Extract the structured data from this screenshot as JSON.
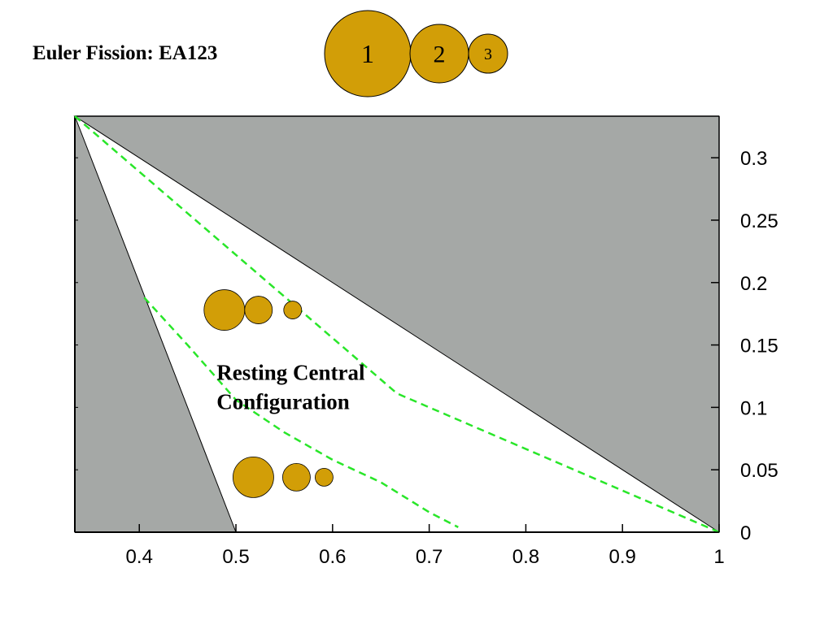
{
  "title": "Euler Fission: EA123",
  "legend_disks": [
    {
      "label": "1"
    },
    {
      "label": "2"
    },
    {
      "label": "3"
    }
  ],
  "colors": {
    "region_fill": "#a5a8a6",
    "disk_fill": "#d29e07",
    "curve": "#29e629",
    "axis": "#000000",
    "background": "#ffffff"
  },
  "chart_data": {
    "type": "line",
    "title": "",
    "xlabel": "",
    "ylabel": "",
    "xlim": [
      0.3333,
      1.0
    ],
    "ylim": [
      0.0,
      0.3333
    ],
    "x_ticks": [
      0.4,
      0.5,
      0.6,
      0.7,
      0.8,
      0.9,
      1
    ],
    "x_tick_labels": [
      "0.4",
      "0.5",
      "0.6",
      "0.7",
      "0.8",
      "0.9",
      "1"
    ],
    "y_ticks": [
      0,
      0.05,
      0.1,
      0.15,
      0.2,
      0.25,
      0.3
    ],
    "y_tick_labels": [
      "0",
      "0.05",
      "0.1",
      "0.15",
      "0.2",
      "0.25",
      "0.3"
    ],
    "y_axis_side": "right",
    "regions": [
      {
        "points": [
          [
            0.3333,
            0.3333
          ],
          [
            1.0,
            0.3333
          ],
          [
            1.0,
            0.0
          ]
        ]
      },
      {
        "points": [
          [
            0.3333,
            0.3333
          ],
          [
            0.3333,
            0.0
          ],
          [
            0.5,
            0.0
          ]
        ]
      }
    ],
    "series": [
      {
        "style": "dashed",
        "points": [
          [
            0.3333,
            0.3333
          ],
          [
            0.5,
            0.2222
          ],
          [
            0.6667,
            0.1111
          ],
          [
            1.0,
            0.0
          ]
        ]
      },
      {
        "style": "dashed",
        "points": [
          [
            0.405,
            0.188
          ],
          [
            0.45,
            0.15
          ],
          [
            0.5,
            0.106
          ],
          [
            0.55,
            0.08
          ],
          [
            0.6,
            0.058
          ],
          [
            0.65,
            0.04
          ],
          [
            0.7,
            0.016
          ],
          [
            0.73,
            0.004
          ]
        ]
      }
    ],
    "annotation": [
      "Resting Central",
      "Configuration"
    ],
    "configurations": [
      {
        "x": 0.52,
        "y": 0.178,
        "masses": [
          1.0,
          0.62,
          0.36
        ]
      },
      {
        "x": 0.55,
        "y": 0.044,
        "masses": [
          1.0,
          0.62,
          0.36
        ]
      }
    ]
  }
}
